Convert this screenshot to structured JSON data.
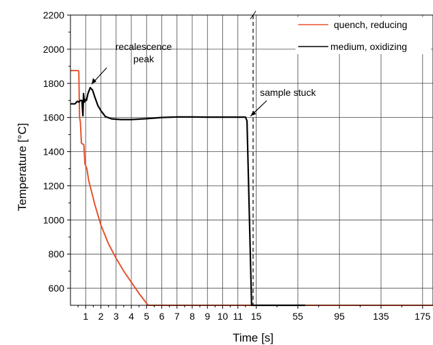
{
  "chart_data": {
    "type": "line",
    "xlabel": "Time [s]",
    "ylabel": "Temperature [°C]",
    "ylim": [
      500,
      2200
    ],
    "y_ticks": [
      600,
      800,
      1000,
      1200,
      1400,
      1600,
      1800,
      2000,
      2200
    ],
    "x_axis_note": "broken axis: linear 0–12 s, then 12–185 s compressed",
    "x_tick_labels": [
      "1",
      "2",
      "3",
      "4",
      "5",
      "6",
      "7",
      "8",
      "9",
      "10",
      "11",
      "15",
      "55",
      "95",
      "135",
      "175"
    ],
    "x_tick_values": [
      1,
      2,
      3,
      4,
      5,
      6,
      7,
      8,
      9,
      10,
      11,
      15,
      55,
      95,
      135,
      175
    ],
    "xlim": [
      0,
      185
    ],
    "break_at": 12,
    "grid": true,
    "legend_position": "top-right",
    "series": [
      {
        "name": "quench, reducing",
        "color": "#e8502a",
        "points": [
          [
            0,
            1875
          ],
          [
            0.5,
            1875
          ],
          [
            0.55,
            1870
          ],
          [
            0.6,
            1600
          ],
          [
            0.65,
            1575
          ],
          [
            0.72,
            1450
          ],
          [
            0.88,
            1440
          ],
          [
            0.95,
            1330
          ],
          [
            1.08,
            1300
          ],
          [
            1.2,
            1230
          ],
          [
            1.4,
            1160
          ],
          [
            1.6,
            1090
          ],
          [
            2,
            970
          ],
          [
            2.5,
            860
          ],
          [
            3,
            775
          ],
          [
            3.5,
            700
          ],
          [
            4,
            635
          ],
          [
            4.5,
            570
          ],
          [
            5.1,
            500
          ],
          [
            6,
            500
          ],
          [
            12,
            500
          ],
          [
            60,
            500
          ],
          [
            120,
            500
          ],
          [
            185,
            500
          ]
        ]
      },
      {
        "name": "medium, oxidizing",
        "color": "#000000",
        "points": [
          [
            0,
            1680
          ],
          [
            0.3,
            1680
          ],
          [
            0.45,
            1695
          ],
          [
            0.55,
            1690
          ],
          [
            0.65,
            1700
          ],
          [
            0.75,
            1700
          ],
          [
            0.82,
            1610
          ],
          [
            0.86,
            1740
          ],
          [
            0.92,
            1690
          ],
          [
            0.98,
            1705
          ],
          [
            1.05,
            1700
          ],
          [
            1.15,
            1740
          ],
          [
            1.3,
            1775
          ],
          [
            1.45,
            1760
          ],
          [
            1.6,
            1720
          ],
          [
            1.8,
            1670
          ],
          [
            2.0,
            1640
          ],
          [
            2.3,
            1605
          ],
          [
            2.7,
            1592
          ],
          [
            3.3,
            1588
          ],
          [
            4,
            1588
          ],
          [
            5,
            1593
          ],
          [
            6,
            1600
          ],
          [
            7,
            1603
          ],
          [
            8,
            1603
          ],
          [
            9,
            1602
          ],
          [
            10,
            1602
          ],
          [
            11,
            1602
          ],
          [
            11.5,
            1602
          ],
          [
            11.6,
            1580
          ],
          [
            11.9,
            500
          ],
          [
            12,
            500
          ],
          [
            30,
            500
          ],
          [
            62,
            500
          ]
        ]
      }
    ],
    "annotations": [
      {
        "text_lines": [
          "recalescence",
          "peak"
        ],
        "arrow_to": [
          1.3,
          1775
        ]
      },
      {
        "text_lines": [
          "sample stuck"
        ],
        "arrow_to": [
          11.65,
          1600
        ]
      }
    ]
  }
}
